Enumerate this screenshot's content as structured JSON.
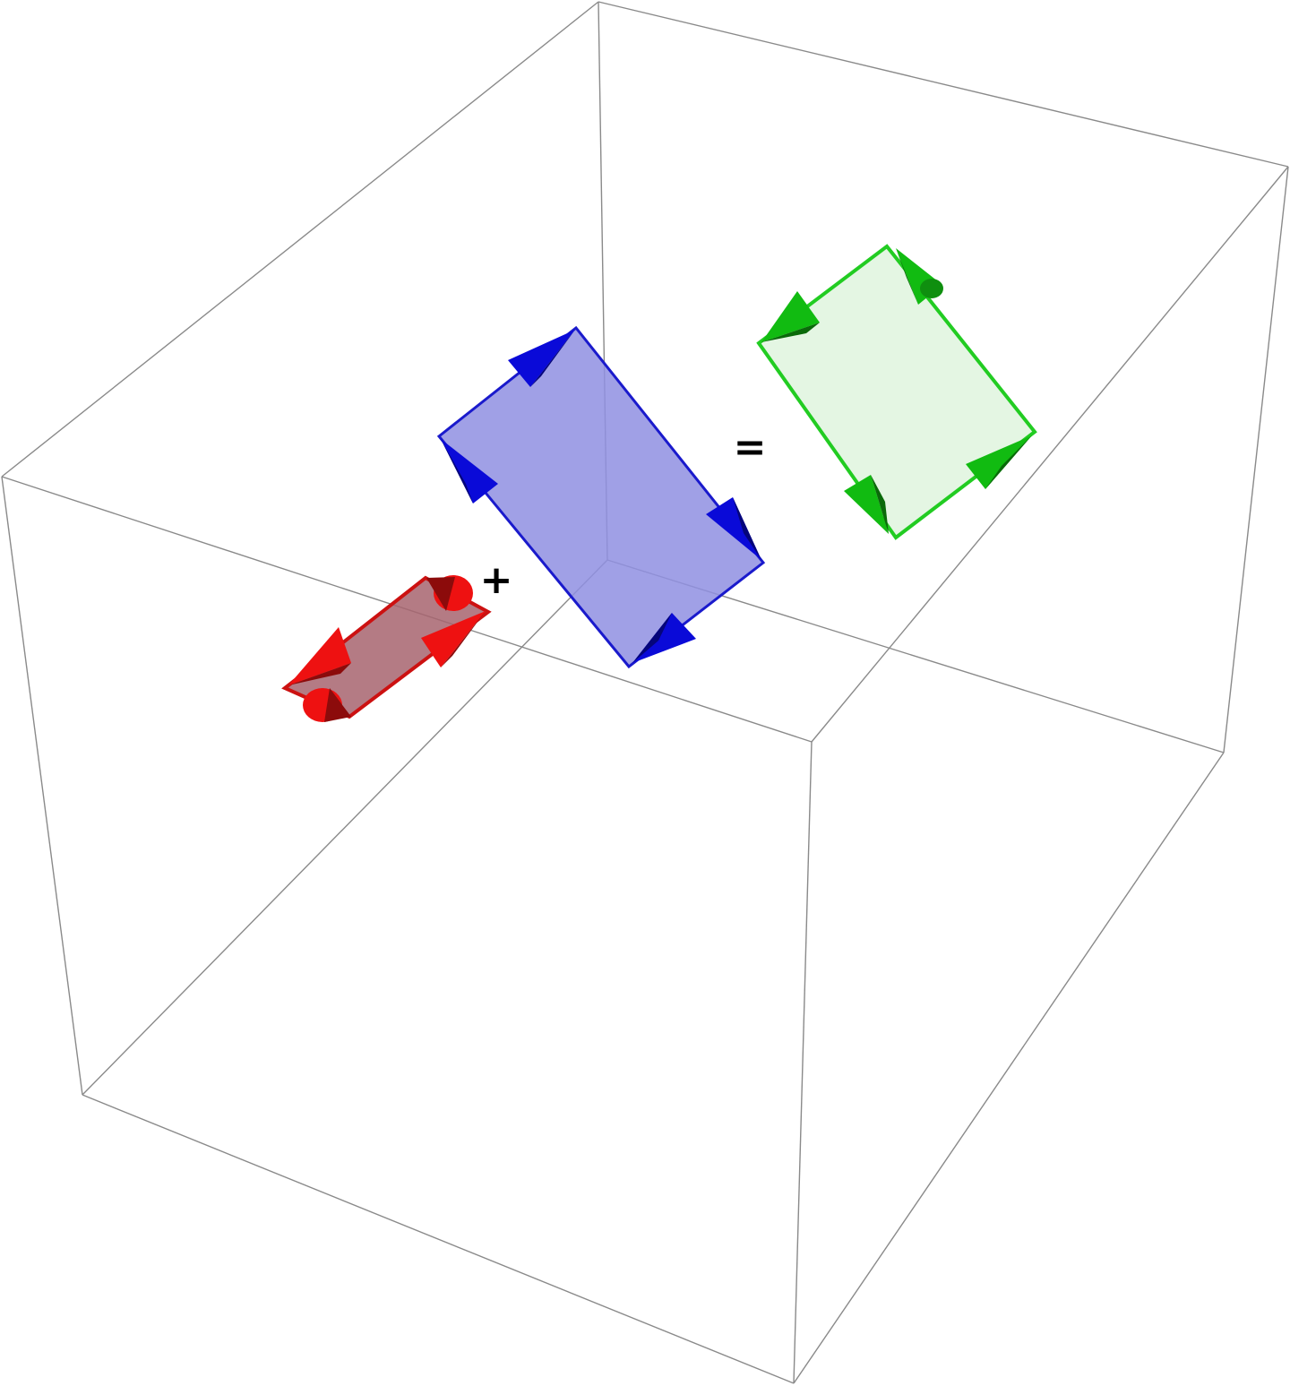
{
  "operators": {
    "plus": "+",
    "equals": "="
  },
  "colors": {
    "background": "#ffffff",
    "box_edges": "#8a8a8a",
    "red_stroke": "#cc1111",
    "red_fill": "#a7646e",
    "red_arrow": "#ee1111",
    "blue_stroke": "#1a1acc",
    "blue_fill": "#8f8fe2",
    "blue_arrow": "#0a0ad8",
    "green_stroke": "#22cc22",
    "green_fill": "#e3f5e1",
    "green_arrow": "#11bb11"
  }
}
